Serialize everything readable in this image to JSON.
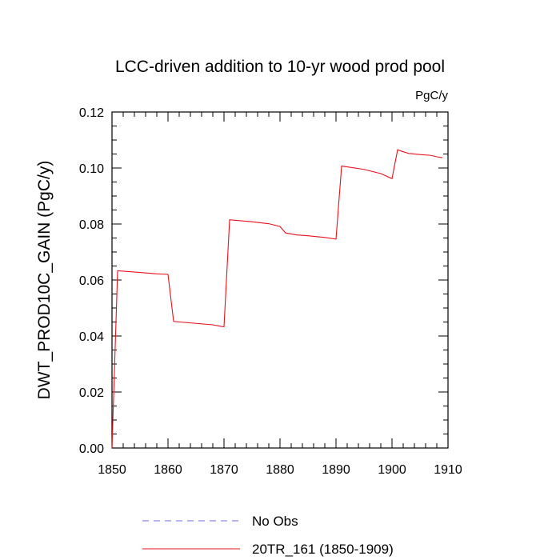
{
  "chart_data": {
    "type": "line",
    "title": "LCC-driven addition to 10-yr wood prod pool",
    "units_label": "PgC/y",
    "xlabel": "",
    "ylabel": "DWT_PROD10C_GAIN  (PgC/y)",
    "xlim": [
      1850,
      1910
    ],
    "ylim": [
      0,
      0.12
    ],
    "xticks": [
      "1850",
      "1860",
      "1870",
      "1880",
      "1890",
      "1900",
      "1910"
    ],
    "yticks": [
      "0.00",
      "0.02",
      "0.04",
      "0.06",
      "0.08",
      "0.10",
      "0.12"
    ],
    "grid": false,
    "legend_position": "bottom",
    "series": [
      {
        "name": "No Obs",
        "color": "#6f6fe8",
        "dash": "dashed",
        "x": [],
        "y": []
      },
      {
        "name": "20TR_161 (1850-1909)",
        "color": "#e8101a",
        "dash": "solid",
        "x": [
          1850,
          1851,
          1855,
          1858,
          1860,
          1861,
          1865,
          1868,
          1869.5,
          1870,
          1871,
          1875,
          1878,
          1880,
          1881,
          1883,
          1885,
          1888,
          1890,
          1891,
          1895,
          1898,
          1900,
          1901,
          1902,
          1903,
          1905,
          1907,
          1908,
          1909
        ],
        "y": [
          0.0,
          0.0633,
          0.0627,
          0.0622,
          0.062,
          0.0452,
          0.0445,
          0.044,
          0.0434,
          0.0433,
          0.0815,
          0.0808,
          0.0801,
          0.0791,
          0.0768,
          0.0761,
          0.0758,
          0.0752,
          0.0746,
          0.1007,
          0.0995,
          0.098,
          0.0962,
          0.1065,
          0.1058,
          0.1052,
          0.1048,
          0.1045,
          0.104,
          0.1037
        ]
      }
    ]
  }
}
